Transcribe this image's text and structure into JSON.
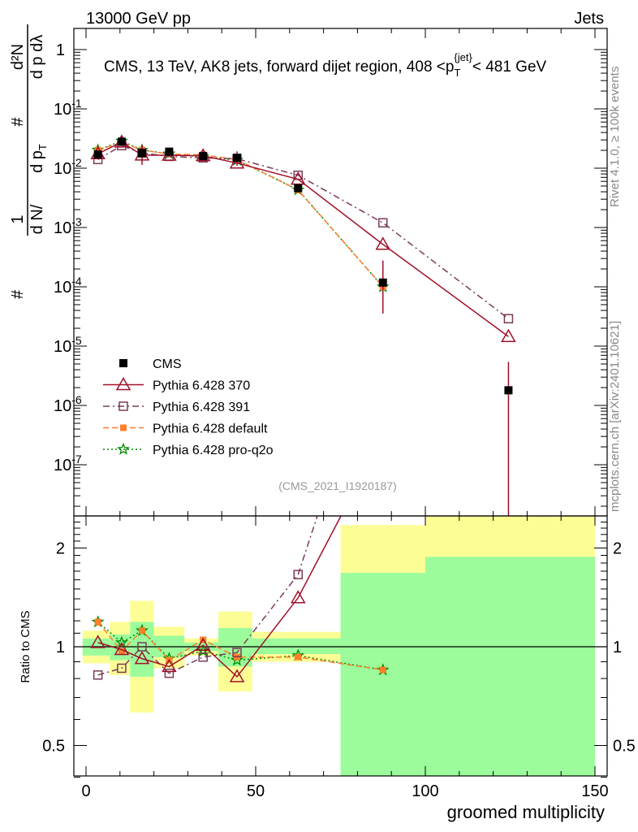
{
  "header": {
    "left": "13000 GeV pp",
    "right": "Jets"
  },
  "side": {
    "rivet": "Rivet 4.1.0, ≥ 100k events",
    "mcplots": "mcplots.cern.ch [arXiv:2401.10621]"
  },
  "analysis_id": "(CMS_2021_I1920187)",
  "chart_data": {
    "type": "line",
    "title": "CMS, 13 TeV, AK8 jets, forward dijet region, 408 <p_T^{jet}< 481 GeV",
    "title_parts": {
      "main": "CMS, 13 TeV, AK8 jets, forward dijet region, 408 <p",
      "sub": "T",
      "sup": "{jet}",
      "tail": "< 481 GeV"
    },
    "ylabel_parts": {
      "one": "1",
      "dn": "d N",
      "over": "/",
      "dpt": "d p",
      "t": "T",
      "hash": "#",
      "d2n": "d²N",
      "dptdl": "d p  dλ"
    },
    "xlabel": "groomed multiplicity",
    "ratio_ylabel": "Ratio to CMS",
    "xlim": [
      -1,
      153
    ],
    "ylim_log": [
      1.4e-08,
      2.3
    ],
    "ratio_ylim_log": [
      0.4,
      2.5
    ],
    "x_ticks": [
      0,
      50,
      100,
      150
    ],
    "y_tick_exponents": [
      0,
      -1,
      -2,
      -3,
      -4,
      -5,
      -6,
      -7
    ],
    "y_tick_labels": [
      "1",
      "10",
      "10",
      "10",
      "10",
      "10",
      "10",
      "10"
    ],
    "y_tick_sups": [
      "",
      "-1",
      "-2",
      "-3",
      "-4",
      "-5",
      "-6",
      "-7"
    ],
    "ratio_ticks": [
      0.5,
      1,
      2
    ],
    "ratio_tick_labels": [
      "0.5",
      "1",
      "2"
    ],
    "x": [
      3.5,
      10.5,
      16.5,
      24.5,
      34.5,
      44.5,
      62.5,
      87.5,
      124.5
    ],
    "bin_edges": [
      -1,
      7,
      13,
      20,
      29,
      39,
      49,
      75,
      100,
      150
    ],
    "cms_band_stat": {
      "lo": [
        0.94,
        0.91,
        0.81,
        0.93,
        0.97,
        0.87,
        0.95,
        0.3,
        0.3
      ],
      "hi": [
        1.06,
        1.09,
        1.19,
        1.08,
        1.03,
        1.14,
        1.06,
        1.68,
        1.88
      ]
    },
    "cms_band_total": {
      "lo": [
        0.89,
        0.82,
        0.63,
        0.86,
        0.94,
        0.73,
        0.9,
        0.3,
        0.3
      ],
      "hi": [
        1.12,
        1.19,
        1.38,
        1.15,
        1.06,
        1.28,
        1.11,
        2.35,
        3.0
      ]
    },
    "series": [
      {
        "name": "CMS",
        "key": "cms",
        "style": "data",
        "color": "#000000",
        "values": [
          0.017,
          0.028,
          0.018,
          0.019,
          0.016,
          0.015,
          0.0046,
          0.000118,
          1.8e-06
        ],
        "ratio": [
          1,
          1,
          1,
          1,
          1,
          1,
          1,
          1,
          1
        ]
      },
      {
        "name": "Pythia 6.428 370",
        "key": "p370",
        "style": "solid",
        "marker": "triangle",
        "color": "#a0102a",
        "values": [
          0.0175,
          0.0275,
          0.0166,
          0.0165,
          0.0162,
          0.0122,
          0.0065,
          0.00052,
          1.45e-05
        ],
        "ratio": [
          1.03,
          0.98,
          0.92,
          0.87,
          1.01,
          0.81,
          1.41,
          4.4,
          8.0
        ]
      },
      {
        "name": "Pythia 6.428 391",
        "key": "p391",
        "style": "dashdot",
        "marker": "opensquare",
        "color": "#7a3b58",
        "values": [
          0.014,
          0.024,
          0.018,
          0.0158,
          0.0149,
          0.0144,
          0.0076,
          0.0012,
          2.9e-05
        ],
        "ratio": [
          0.82,
          0.86,
          1.0,
          0.83,
          0.93,
          0.96,
          1.66,
          10.2,
          16
        ]
      },
      {
        "name": "Pythia 6.428 default",
        "key": "pdef",
        "style": "dashed",
        "marker": "filledsquare",
        "color": "#ff7f2a",
        "values": [
          0.0202,
          0.0272,
          0.0202,
          0.0173,
          0.0168,
          0.014,
          0.0043,
          0.0001,
          null
        ],
        "ratio": [
          1.19,
          0.97,
          1.12,
          0.91,
          1.05,
          0.93,
          0.93,
          0.85,
          null
        ]
      },
      {
        "name": "Pythia 6.428 pro-q2o",
        "key": "pq2o",
        "style": "dotted",
        "marker": "star",
        "color": "#008a00",
        "values": [
          0.0202,
          0.0288,
          0.0202,
          0.0175,
          0.0155,
          0.0137,
          0.0043,
          0.0001,
          null
        ],
        "ratio": [
          1.19,
          1.03,
          1.12,
          0.92,
          0.97,
          0.91,
          0.94,
          0.85,
          null
        ]
      }
    ],
    "legend_placement": "bottom-left",
    "colors": {
      "stat_band": "#9cfc9c",
      "total_band": "#fdfd96"
    }
  }
}
